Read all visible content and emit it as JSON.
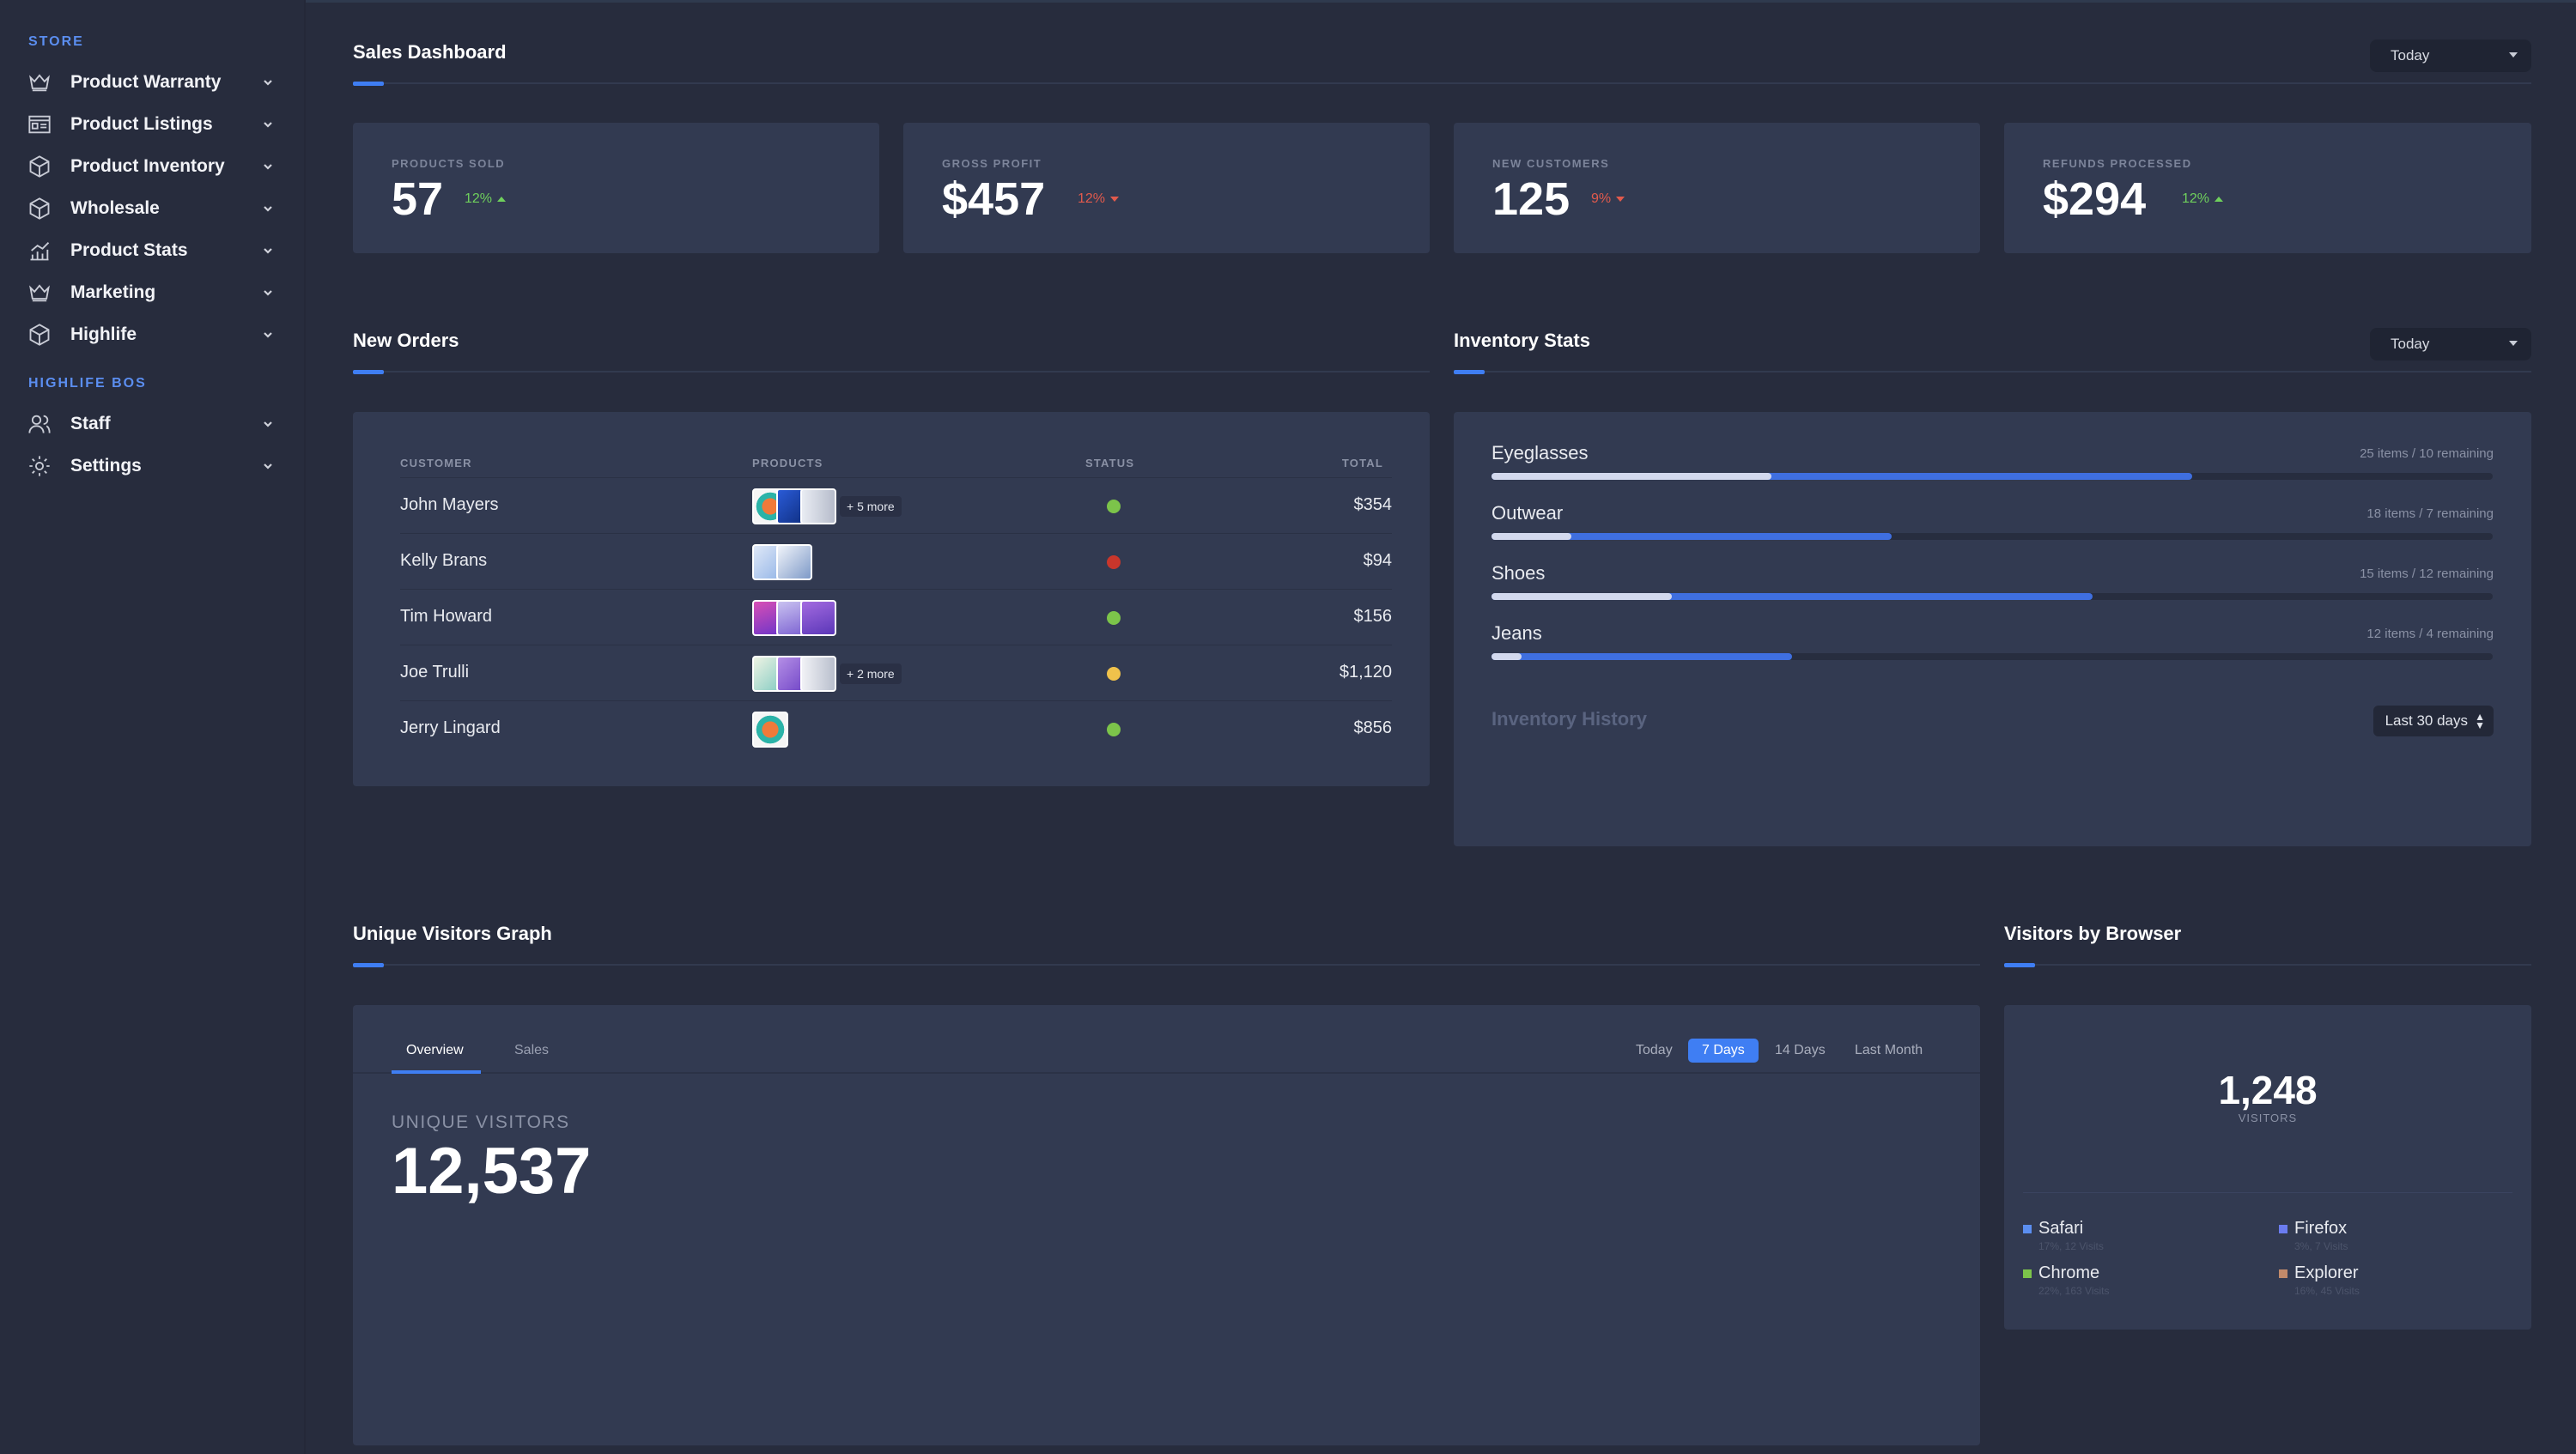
{
  "sidebar": {
    "sections": [
      {
        "title": "STORE",
        "items": [
          {
            "label": "Product Warranty",
            "icon": "crown-icon"
          },
          {
            "label": "Product Listings",
            "icon": "listing-icon"
          },
          {
            "label": "Product Inventory",
            "icon": "box-icon"
          },
          {
            "label": "Wholesale",
            "icon": "box-icon"
          },
          {
            "label": "Product Stats",
            "icon": "chart-icon"
          },
          {
            "label": "Marketing",
            "icon": "crown-icon"
          },
          {
            "label": "Highlife",
            "icon": "box-icon"
          }
        ]
      },
      {
        "title": "HIGHLIFE BOS",
        "items": [
          {
            "label": "Staff",
            "icon": "users-icon"
          },
          {
            "label": "Settings",
            "icon": "gear-icon"
          }
        ]
      }
    ]
  },
  "sales_dashboard": {
    "title": "Sales Dashboard",
    "period": "Today",
    "kpis": [
      {
        "label": "PRODUCTS SOLD",
        "value": "57",
        "delta": "12%",
        "trend": "up"
      },
      {
        "label": "GROSS PROFIT",
        "value": "$457",
        "delta": "12%",
        "trend": "down"
      },
      {
        "label": "NEW CUSTOMERS",
        "value": "125",
        "delta": "9%",
        "trend": "down"
      },
      {
        "label": "REFUNDS PROCESSED",
        "value": "$294",
        "delta": "12%",
        "trend": "up"
      }
    ]
  },
  "new_orders": {
    "title": "New Orders",
    "columns": {
      "customer": "CUSTOMER",
      "products": "PRODUCTS",
      "status": "STATUS",
      "total": "TOTAL"
    },
    "rows": [
      {
        "customer": "John Mayers",
        "more": "+ 5 more",
        "status": "complete",
        "total": "$354"
      },
      {
        "customer": "Kelly Brans",
        "more": "",
        "status": "cancelled",
        "total": "$94"
      },
      {
        "customer": "Tim Howard",
        "more": "",
        "status": "complete",
        "total": "$156"
      },
      {
        "customer": "Joe Trulli",
        "more": "+ 2 more",
        "status": "pending",
        "total": "$1,120"
      },
      {
        "customer": "Jerry Lingard",
        "more": "",
        "status": "complete",
        "total": "$856"
      }
    ],
    "status_colors": {
      "complete": "#7cc44a",
      "cancelled": "#c9362b",
      "pending": "#f0c24b"
    }
  },
  "inventory": {
    "title": "Inventory Stats",
    "period": "Today",
    "items": [
      {
        "name": "Eyeglasses",
        "count": "25 items / 10 remaining",
        "total_pct": 70,
        "remaining_pct": 28
      },
      {
        "name": "Outwear",
        "count": "18 items / 7 remaining",
        "total_pct": 40,
        "remaining_pct": 8
      },
      {
        "name": "Shoes",
        "count": "15 items / 12 remaining",
        "total_pct": 60,
        "remaining_pct": 18
      },
      {
        "name": "Jeans",
        "count": "12 items / 4 remaining",
        "total_pct": 30,
        "remaining_pct": 3
      }
    ],
    "history_title": "Inventory History",
    "history_period": "Last 30 days"
  },
  "visitors_graph": {
    "title": "Unique Visitors Graph",
    "tabs": [
      "Overview",
      "Sales"
    ],
    "ranges": [
      "Today",
      "7 Days",
      "14 Days",
      "Last Month"
    ],
    "active_range": "7 Days",
    "label": "UNIQUE VISITORS",
    "value": "12,537"
  },
  "browsers": {
    "title": "Visitors by Browser",
    "total": "1,248",
    "total_label": "VISITORS",
    "items": [
      {
        "name": "Safari",
        "sub": "17%, 12 Visits",
        "color": "#5b8ef0"
      },
      {
        "name": "Firefox",
        "sub": "3%, 7 Visits",
        "color": "#6b7cf0"
      },
      {
        "name": "Chrome",
        "sub": "22%, 163 Visits",
        "color": "#7cc44a"
      },
      {
        "name": "Explorer",
        "sub": "16%, 45 Visits",
        "color": "#c28a6a"
      }
    ]
  }
}
